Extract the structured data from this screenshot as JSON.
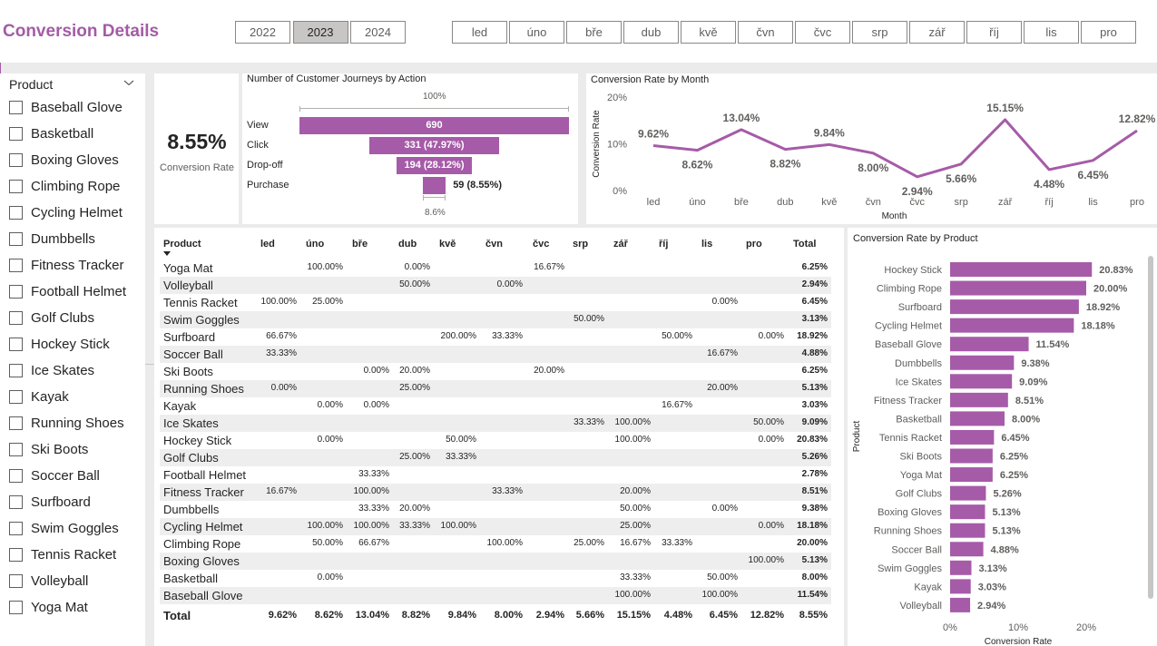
{
  "header": {
    "title": "Conversion Details",
    "years": [
      {
        "label": "2022",
        "selected": false
      },
      {
        "label": "2023",
        "selected": true
      },
      {
        "label": "2024",
        "selected": false
      }
    ],
    "months": [
      "led",
      "úno",
      "bře",
      "dub",
      "kvě",
      "čvn",
      "čvc",
      "srp",
      "zář",
      "říj",
      "lis",
      "pro"
    ]
  },
  "product_slicer": {
    "header": "Product",
    "items": [
      "Baseball Glove",
      "Basketball",
      "Boxing Gloves",
      "Climbing Rope",
      "Cycling Helmet",
      "Dumbbells",
      "Fitness Tracker",
      "Football Helmet",
      "Golf Clubs",
      "Hockey Stick",
      "Ice Skates",
      "Kayak",
      "Running Shoes",
      "Ski Boots",
      "Soccer Ball",
      "Surfboard",
      "Swim Goggles",
      "Tennis Racket",
      "Volleyball",
      "Yoga Mat"
    ]
  },
  "kpi": {
    "value": "8.55%",
    "label": "Conversion Rate"
  },
  "funnel": {
    "title": "Number of Customer Journeys by Action",
    "top_pct": "100%",
    "bottom_pct": "8.6%",
    "stages": [
      {
        "label": "View",
        "value": 690,
        "text": "690"
      },
      {
        "label": "Click",
        "value": 331,
        "text": "331 (47.97%)"
      },
      {
        "label": "Drop-off",
        "value": 194,
        "text": "194 (28.12%)"
      },
      {
        "label": "Purchase",
        "value": 59,
        "text": "59 (8.55%)"
      }
    ]
  },
  "matrix": {
    "columns": [
      "Product",
      "led",
      "úno",
      "bře",
      "dub",
      "kvě",
      "čvn",
      "čvc",
      "srp",
      "zář",
      "říj",
      "lis",
      "pro",
      "Total"
    ],
    "rows": [
      {
        "name": "Yoga Mat",
        "cells": [
          "",
          "100.00%",
          "",
          "0.00%",
          "",
          "",
          "16.67%",
          "",
          "",
          "",
          "",
          "",
          ""
        ],
        "total": "6.25%"
      },
      {
        "name": "Volleyball",
        "cells": [
          "",
          "",
          "",
          "50.00%",
          "",
          "0.00%",
          "",
          "",
          "",
          "",
          "",
          "",
          ""
        ],
        "total": "2.94%"
      },
      {
        "name": "Tennis Racket",
        "cells": [
          "100.00%",
          "25.00%",
          "",
          "",
          "",
          "",
          "",
          "",
          "",
          "",
          "0.00%",
          "",
          ""
        ],
        "total": "6.45%"
      },
      {
        "name": "Swim Goggles",
        "cells": [
          "",
          "",
          "",
          "",
          "",
          "",
          "",
          "50.00%",
          "",
          "",
          "",
          "",
          ""
        ],
        "total": "3.13%"
      },
      {
        "name": "Surfboard",
        "cells": [
          "66.67%",
          "",
          "",
          "",
          "200.00%",
          "33.33%",
          "",
          "",
          "",
          "50.00%",
          "",
          "0.00%",
          ""
        ],
        "total": "18.92%"
      },
      {
        "name": "Soccer Ball",
        "cells": [
          "33.33%",
          "",
          "",
          "",
          "",
          "",
          "",
          "",
          "",
          "",
          "16.67%",
          "",
          ""
        ],
        "total": "4.88%"
      },
      {
        "name": "Ski Boots",
        "cells": [
          "",
          "",
          "0.00%",
          "20.00%",
          "",
          "",
          "20.00%",
          "",
          "",
          "",
          "",
          "",
          ""
        ],
        "total": "6.25%"
      },
      {
        "name": "Running Shoes",
        "cells": [
          "0.00%",
          "",
          "",
          "25.00%",
          "",
          "",
          "",
          "",
          "",
          "",
          "20.00%",
          "",
          ""
        ],
        "total": "5.13%"
      },
      {
        "name": "Kayak",
        "cells": [
          "",
          "0.00%",
          "0.00%",
          "",
          "",
          "",
          "",
          "",
          "",
          "16.67%",
          "",
          "",
          ""
        ],
        "total": "3.03%"
      },
      {
        "name": "Ice Skates",
        "cells": [
          "",
          "",
          "",
          "",
          "",
          "",
          "",
          "33.33%",
          "100.00%",
          "",
          "",
          "50.00%",
          ""
        ],
        "total": "9.09%"
      },
      {
        "name": "Hockey Stick",
        "cells": [
          "",
          "0.00%",
          "",
          "",
          "50.00%",
          "",
          "",
          "",
          "100.00%",
          "",
          "",
          "0.00%",
          ""
        ],
        "total": "20.83%"
      },
      {
        "name": "Golf Clubs",
        "cells": [
          "",
          "",
          "",
          "25.00%",
          "33.33%",
          "",
          "",
          "",
          "",
          "",
          "",
          "",
          ""
        ],
        "total": "5.26%"
      },
      {
        "name": "Football Helmet",
        "cells": [
          "",
          "",
          "33.33%",
          "",
          "",
          "",
          "",
          "",
          "",
          "",
          "",
          "",
          ""
        ],
        "total": "2.78%"
      },
      {
        "name": "Fitness Tracker",
        "cells": [
          "16.67%",
          "",
          "100.00%",
          "",
          "",
          "33.33%",
          "",
          "",
          "20.00%",
          "",
          "",
          "",
          ""
        ],
        "total": "8.51%"
      },
      {
        "name": "Dumbbells",
        "cells": [
          "",
          "",
          "33.33%",
          "20.00%",
          "",
          "",
          "",
          "",
          "50.00%",
          "",
          "0.00%",
          "",
          ""
        ],
        "total": "9.38%"
      },
      {
        "name": "Cycling Helmet",
        "cells": [
          "",
          "100.00%",
          "100.00%",
          "33.33%",
          "100.00%",
          "",
          "",
          "",
          "25.00%",
          "",
          "",
          "0.00%",
          ""
        ],
        "total": "18.18%"
      },
      {
        "name": "Climbing Rope",
        "cells": [
          "",
          "50.00%",
          "66.67%",
          "",
          "",
          "100.00%",
          "",
          "25.00%",
          "16.67%",
          "33.33%",
          "",
          "",
          ""
        ],
        "total": "20.00%"
      },
      {
        "name": "Boxing Gloves",
        "cells": [
          "",
          "",
          "",
          "",
          "",
          "",
          "",
          "",
          "",
          "",
          "",
          "100.00%",
          ""
        ],
        "total": "5.13%"
      },
      {
        "name": "Basketball",
        "cells": [
          "",
          "0.00%",
          "",
          "",
          "",
          "",
          "",
          "",
          "33.33%",
          "",
          "50.00%",
          "",
          ""
        ],
        "total": "8.00%"
      },
      {
        "name": "Baseball Glove",
        "cells": [
          "",
          "",
          "",
          "",
          "",
          "",
          "",
          "",
          "100.00%",
          "",
          "100.00%",
          "",
          ""
        ],
        "total": "11.54%"
      }
    ],
    "total_row": {
      "name": "Total",
      "cells": [
        "9.62%",
        "8.62%",
        "13.04%",
        "8.82%",
        "9.84%",
        "8.00%",
        "2.94%",
        "5.66%",
        "15.15%",
        "4.48%",
        "6.45%",
        "12.82%"
      ],
      "total": "8.55%"
    }
  },
  "chart_data": [
    {
      "type": "line",
      "title": "Conversion Rate by Month",
      "xlabel": "Month",
      "ylabel": "Conversion Rate",
      "categories": [
        "led",
        "úno",
        "bře",
        "dub",
        "kvě",
        "čvn",
        "čvc",
        "srp",
        "zář",
        "říj",
        "lis",
        "pro"
      ],
      "values": [
        9.62,
        8.62,
        13.04,
        8.82,
        9.84,
        8.0,
        2.94,
        5.66,
        15.15,
        4.48,
        6.45,
        12.82
      ],
      "labels": [
        "9.62%",
        "8.62%",
        "13.04%",
        "8.82%",
        "9.84%",
        "8.00%",
        "2.94%",
        "5.66%",
        "15.15%",
        "4.48%",
        "6.45%",
        "12.82%"
      ],
      "ylim": [
        0,
        20
      ],
      "yticks": [
        "0%",
        "10%",
        "20%"
      ],
      "color": "#a65ba8"
    },
    {
      "type": "bar",
      "orientation": "horizontal",
      "title": "Conversion Rate by Product",
      "xlabel": "Conversion Rate",
      "ylabel": "Product",
      "categories": [
        "Hockey Stick",
        "Climbing Rope",
        "Surfboard",
        "Cycling Helmet",
        "Baseball Glove",
        "Dumbbells",
        "Ice Skates",
        "Fitness Tracker",
        "Basketball",
        "Tennis Racket",
        "Ski Boots",
        "Yoga Mat",
        "Golf Clubs",
        "Boxing Gloves",
        "Running Shoes",
        "Soccer Ball",
        "Swim Goggles",
        "Kayak",
        "Volleyball"
      ],
      "values": [
        20.83,
        20.0,
        18.92,
        18.18,
        11.54,
        9.38,
        9.09,
        8.51,
        8.0,
        6.45,
        6.25,
        6.25,
        5.26,
        5.13,
        5.13,
        4.88,
        3.13,
        3.03,
        2.94
      ],
      "labels": [
        "20.83%",
        "20.00%",
        "18.92%",
        "18.18%",
        "11.54%",
        "9.38%",
        "9.09%",
        "8.51%",
        "8.00%",
        "6.45%",
        "6.25%",
        "6.25%",
        "5.26%",
        "5.13%",
        "5.13%",
        "4.88%",
        "3.13%",
        "3.03%",
        "2.94%"
      ],
      "xlim": [
        0,
        25
      ],
      "xticks": [
        "0%",
        "10%",
        "20%"
      ],
      "color": "#a65ba8"
    }
  ]
}
